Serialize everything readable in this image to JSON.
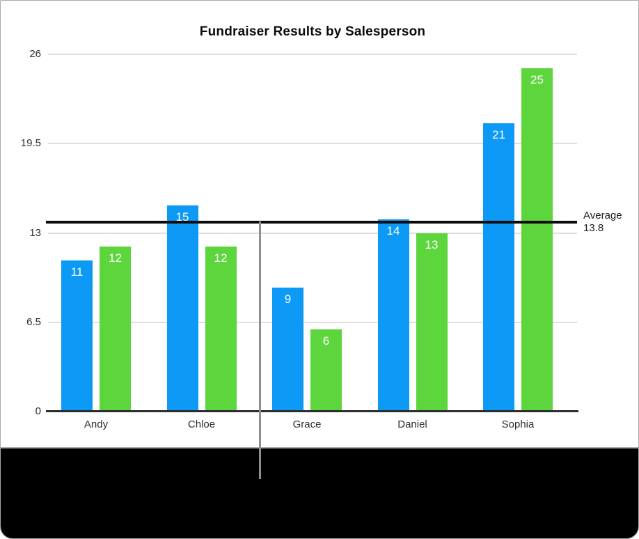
{
  "chart_data": {
    "type": "bar",
    "title": "Fundraiser Results by Salesperson",
    "categories": [
      "Andy",
      "Chloe",
      "Grace",
      "Daniel",
      "Sophia"
    ],
    "series": [
      {
        "name": "series-blue",
        "color": "#0d99f6",
        "values": [
          11,
          15,
          9,
          14,
          21
        ]
      },
      {
        "name": "series-green",
        "color": "#5cd63c",
        "values": [
          12,
          12,
          6,
          13,
          25
        ]
      }
    ],
    "y_ticks": [
      0,
      6.5,
      13,
      19.5,
      26
    ],
    "y_tick_labels": [
      "0",
      "6.5",
      "13",
      "19.5",
      "26"
    ],
    "ylim": [
      0,
      26
    ],
    "grid": true,
    "legend_position": "none",
    "bar_value_labels_visible": true,
    "reference_line": {
      "label": "Average",
      "value_label": "13.8",
      "value": 13.8,
      "color": "#0a0a0a"
    }
  },
  "annotation": {
    "callout_line_color": "#8f8f8f"
  },
  "colors": {
    "background": "#ffffff",
    "caption_background": "#000000",
    "frame_border": "#a9a9a9",
    "gridline": "#dfdfdf",
    "axis_line": "#2d2d2d",
    "axis_text": "#2e2e2e",
    "bar_label_text": "#ffffff",
    "title_text": "#0c0c0c"
  }
}
